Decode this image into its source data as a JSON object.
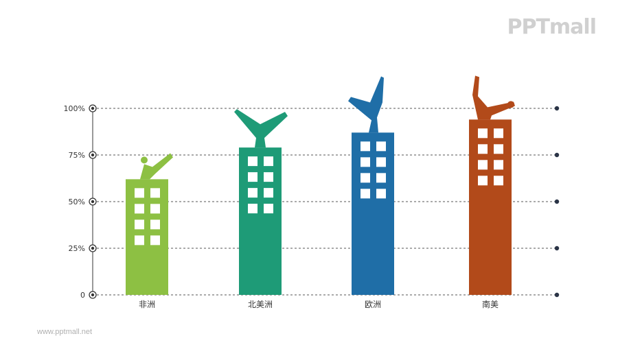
{
  "logo_text": "PPTmall",
  "footer_text": "www.pptmall.net",
  "chart_data": {
    "type": "bar",
    "categories": [
      "非洲",
      "北美洲",
      "欧洲",
      "南美"
    ],
    "values": [
      62,
      79,
      87,
      94
    ],
    "colors": [
      "#8dc043",
      "#1e9b77",
      "#1f6ea7",
      "#b24a1a"
    ],
    "ylim": [
      0,
      100
    ],
    "yticks": [
      0,
      25,
      50,
      75,
      100
    ],
    "ytick_labels": [
      "0",
      "25%",
      "50%",
      "75%",
      "100%"
    ],
    "grid": true,
    "title": "",
    "xlabel": "",
    "ylabel": ""
  }
}
